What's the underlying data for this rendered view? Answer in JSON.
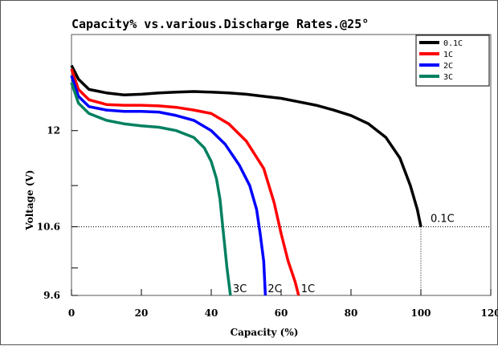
{
  "chart_data": {
    "type": "line",
    "title": "Capacity% vs.various.Discharge Rates.@25°",
    "xlabel": "Capacity (%)",
    "ylabel": "Voltage (V)",
    "xlim": [
      0,
      120
    ],
    "ylim": [
      9.6,
      13.4
    ],
    "x_ticks": [
      "0",
      "20",
      "40",
      "60",
      "80",
      "100",
      "120"
    ],
    "y_ticks": [
      "9.6",
      "10.6",
      "12"
    ],
    "y_tick_values": [
      9.6,
      10.6,
      12.0
    ],
    "grid": false,
    "legend_position": "top-right",
    "reference_level": {
      "y": 10.6,
      "x_end": 100,
      "label": "0.1C"
    },
    "series": [
      {
        "name": "0.1C",
        "color": "#000000",
        "end_label": "",
        "points": [
          [
            0,
            12.95
          ],
          [
            2,
            12.75
          ],
          [
            5,
            12.6
          ],
          [
            10,
            12.55
          ],
          [
            15,
            12.52
          ],
          [
            20,
            12.53
          ],
          [
            25,
            12.55
          ],
          [
            30,
            12.56
          ],
          [
            35,
            12.57
          ],
          [
            40,
            12.56
          ],
          [
            45,
            12.55
          ],
          [
            50,
            12.53
          ],
          [
            55,
            12.5
          ],
          [
            60,
            12.47
          ],
          [
            65,
            12.42
          ],
          [
            70,
            12.37
          ],
          [
            75,
            12.3
          ],
          [
            80,
            12.22
          ],
          [
            85,
            12.1
          ],
          [
            90,
            11.9
          ],
          [
            94,
            11.6
          ],
          [
            97,
            11.2
          ],
          [
            99,
            10.85
          ],
          [
            100,
            10.6
          ]
        ]
      },
      {
        "name": "1C",
        "color": "#ff0000",
        "end_label": "1C",
        "points": [
          [
            0,
            12.9
          ],
          [
            2,
            12.6
          ],
          [
            5,
            12.45
          ],
          [
            10,
            12.38
          ],
          [
            15,
            12.37
          ],
          [
            20,
            12.37
          ],
          [
            25,
            12.36
          ],
          [
            30,
            12.34
          ],
          [
            35,
            12.3
          ],
          [
            40,
            12.25
          ],
          [
            45,
            12.1
          ],
          [
            50,
            11.85
          ],
          [
            55,
            11.45
          ],
          [
            58,
            10.95
          ],
          [
            60,
            10.5
          ],
          [
            62,
            10.1
          ],
          [
            64,
            9.8
          ],
          [
            65,
            9.6
          ]
        ]
      },
      {
        "name": "2C",
        "color": "#0000ff",
        "end_label": "2C",
        "points": [
          [
            0,
            12.8
          ],
          [
            2,
            12.5
          ],
          [
            5,
            12.35
          ],
          [
            10,
            12.3
          ],
          [
            15,
            12.28
          ],
          [
            20,
            12.28
          ],
          [
            25,
            12.27
          ],
          [
            30,
            12.22
          ],
          [
            35,
            12.15
          ],
          [
            40,
            12.0
          ],
          [
            44,
            11.8
          ],
          [
            48,
            11.5
          ],
          [
            51,
            11.2
          ],
          [
            53,
            10.85
          ],
          [
            54,
            10.5
          ],
          [
            55,
            10.1
          ],
          [
            55.5,
            9.6
          ]
        ]
      },
      {
        "name": "3C",
        "color": "#008060",
        "end_label": "3C",
        "points": [
          [
            0,
            12.7
          ],
          [
            2,
            12.4
          ],
          [
            5,
            12.25
          ],
          [
            10,
            12.15
          ],
          [
            15,
            12.1
          ],
          [
            20,
            12.07
          ],
          [
            25,
            12.05
          ],
          [
            30,
            12.0
          ],
          [
            35,
            11.9
          ],
          [
            38,
            11.75
          ],
          [
            40,
            11.55
          ],
          [
            41.5,
            11.3
          ],
          [
            42.5,
            11.0
          ],
          [
            43.5,
            10.5
          ],
          [
            44.5,
            10.0
          ],
          [
            45.5,
            9.6
          ]
        ]
      }
    ]
  }
}
